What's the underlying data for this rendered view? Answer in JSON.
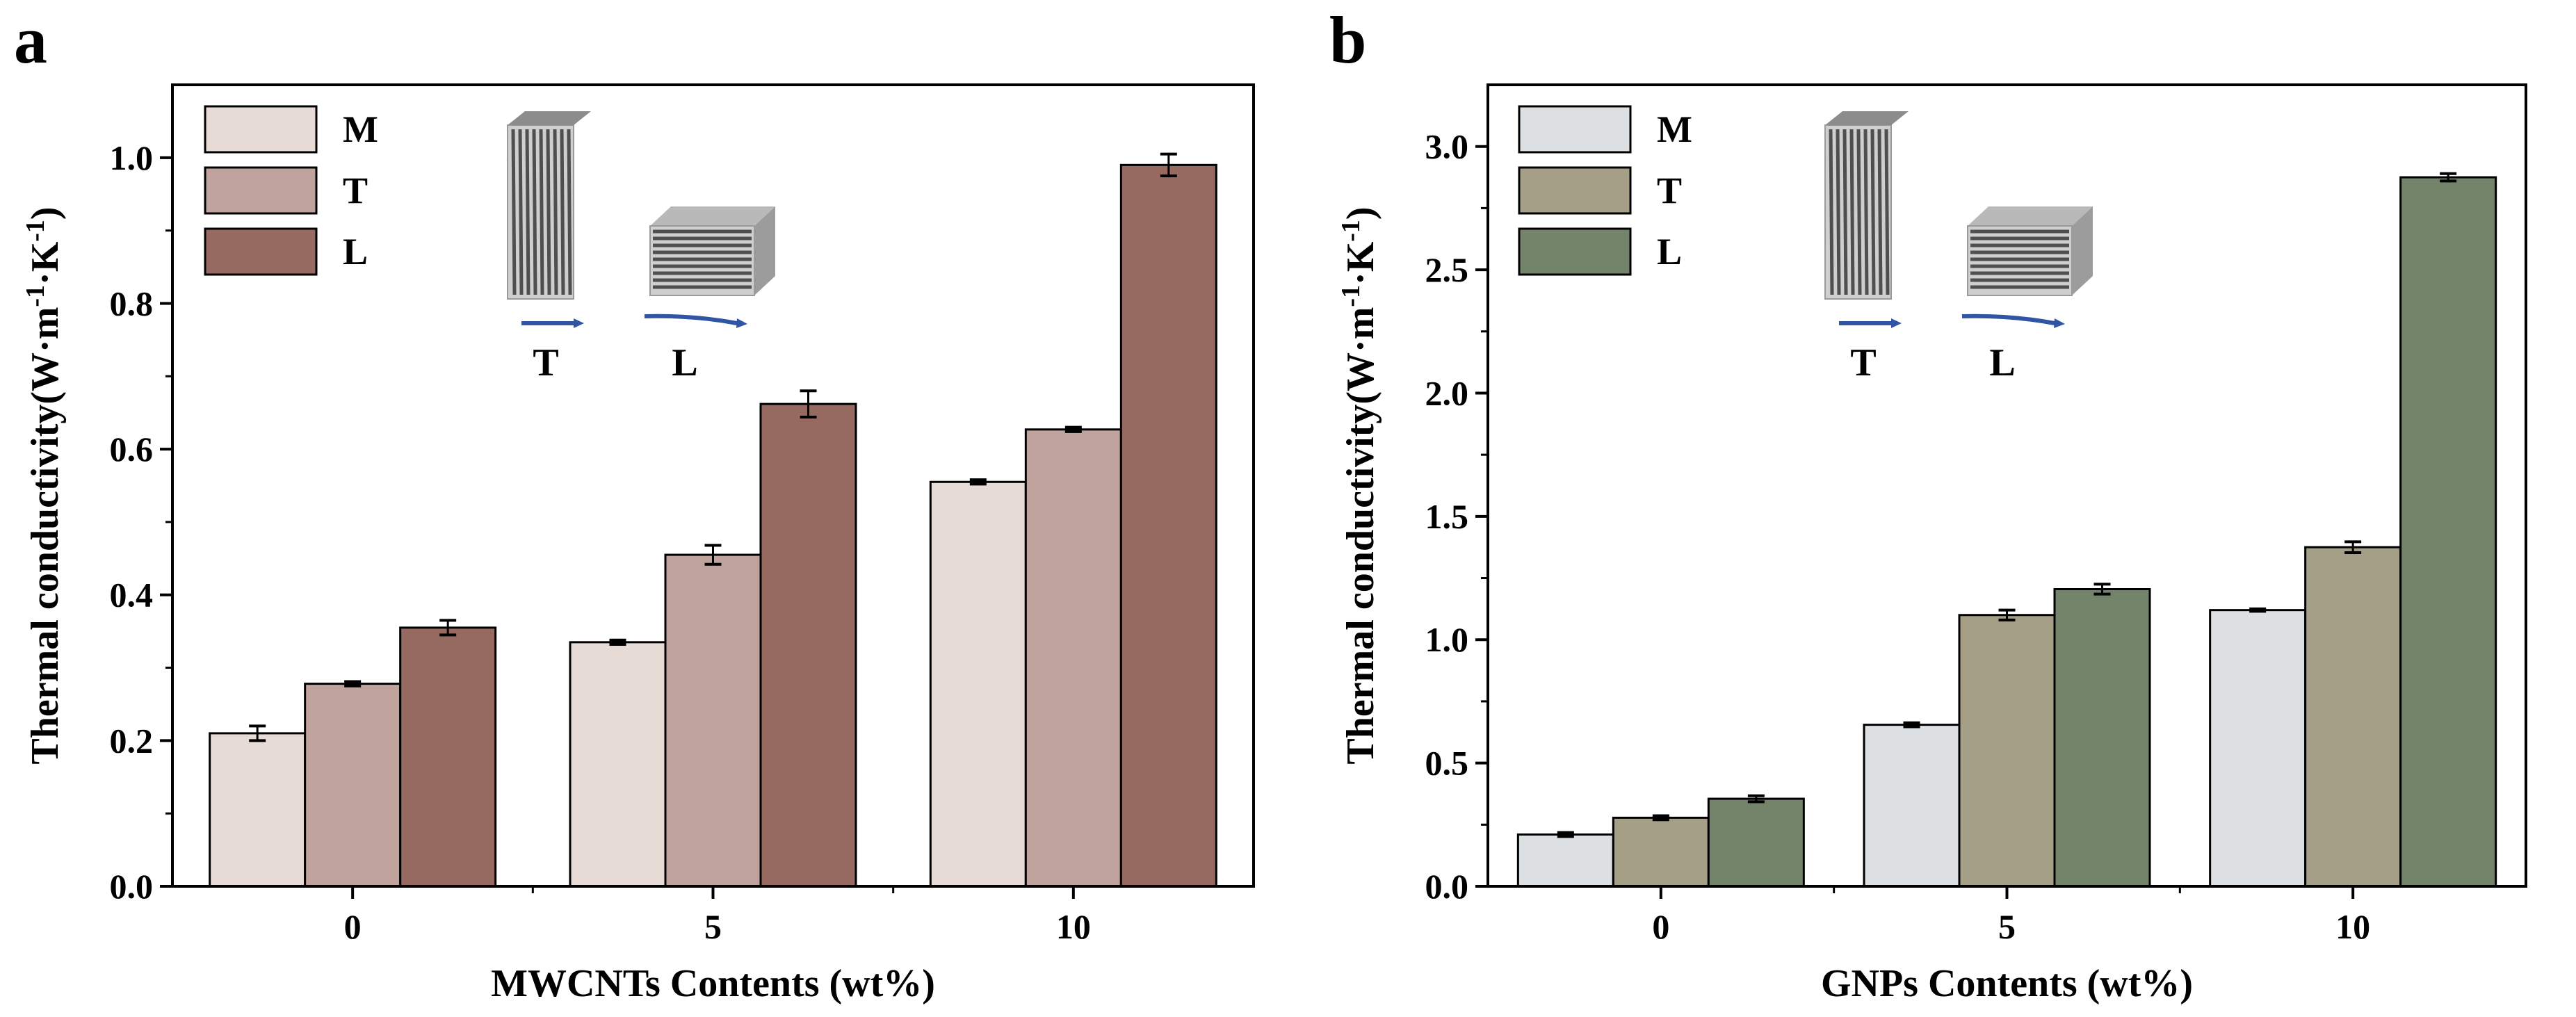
{
  "chart_data": [
    {
      "panel_letter": "a",
      "type": "bar",
      "xlabel": "MWCNTs Contents (wt%)",
      "ylabel_base": "Thermal conductivity(W·m",
      "ylabel_sup1": "-1",
      "ylabel_mid": "·K",
      "ylabel_sup2": "-1",
      "ylabel_end": ")",
      "categories": [
        "0",
        "5",
        "10"
      ],
      "ylim": [
        0,
        1.1
      ],
      "yticks": [
        0.0,
        0.2,
        0.4,
        0.6,
        0.8,
        1.0
      ],
      "ytick_labels": [
        "0.0",
        "0.2",
        "0.4",
        "0.6",
        "0.8",
        "1.0"
      ],
      "series": [
        {
          "name": "M",
          "color": "#e7dcd5",
          "values": [
            0.21,
            0.335,
            0.555
          ],
          "errors": [
            0.01,
            0.003,
            0.003
          ]
        },
        {
          "name": "T",
          "color": "#c0a39c",
          "values": [
            0.278,
            0.455,
            0.627
          ],
          "errors": [
            0.003,
            0.013,
            0.003
          ]
        },
        {
          "name": "L",
          "color": "#976a61",
          "values": [
            0.355,
            0.662,
            0.99
          ],
          "errors": [
            0.01,
            0.018,
            0.015
          ]
        }
      ],
      "inset_labels": [
        "T",
        "L"
      ]
    },
    {
      "panel_letter": "b",
      "type": "bar",
      "xlabel": "GNPs Contents (wt%)",
      "ylabel_base": "Thermal conductivity(W·m",
      "ylabel_sup1": "-1",
      "ylabel_mid": "·K",
      "ylabel_sup2": "-1",
      "ylabel_end": ")",
      "categories": [
        "0",
        "5",
        "10"
      ],
      "ylim": [
        0,
        3.25
      ],
      "yticks": [
        0.0,
        0.5,
        1.0,
        1.5,
        2.0,
        2.5,
        3.0
      ],
      "ytick_labels": [
        "0.0",
        "0.5",
        "1.0",
        "1.5",
        "2.0",
        "2.5",
        "3.0"
      ],
      "series": [
        {
          "name": "M",
          "color": "#dce0e2",
          "values": [
            0.21,
            0.655,
            1.12
          ],
          "errors": [
            0.008,
            0.008,
            0.005
          ]
        },
        {
          "name": "T",
          "color": "#a69f87",
          "values": [
            0.278,
            1.1,
            1.375
          ],
          "errors": [
            0.008,
            0.02,
            0.022
          ]
        },
        {
          "name": "L",
          "color": "#74846b",
          "values": [
            0.355,
            1.205,
            2.875
          ],
          "errors": [
            0.012,
            0.02,
            0.015
          ]
        }
      ],
      "inset_labels": [
        "T",
        "L"
      ]
    }
  ]
}
